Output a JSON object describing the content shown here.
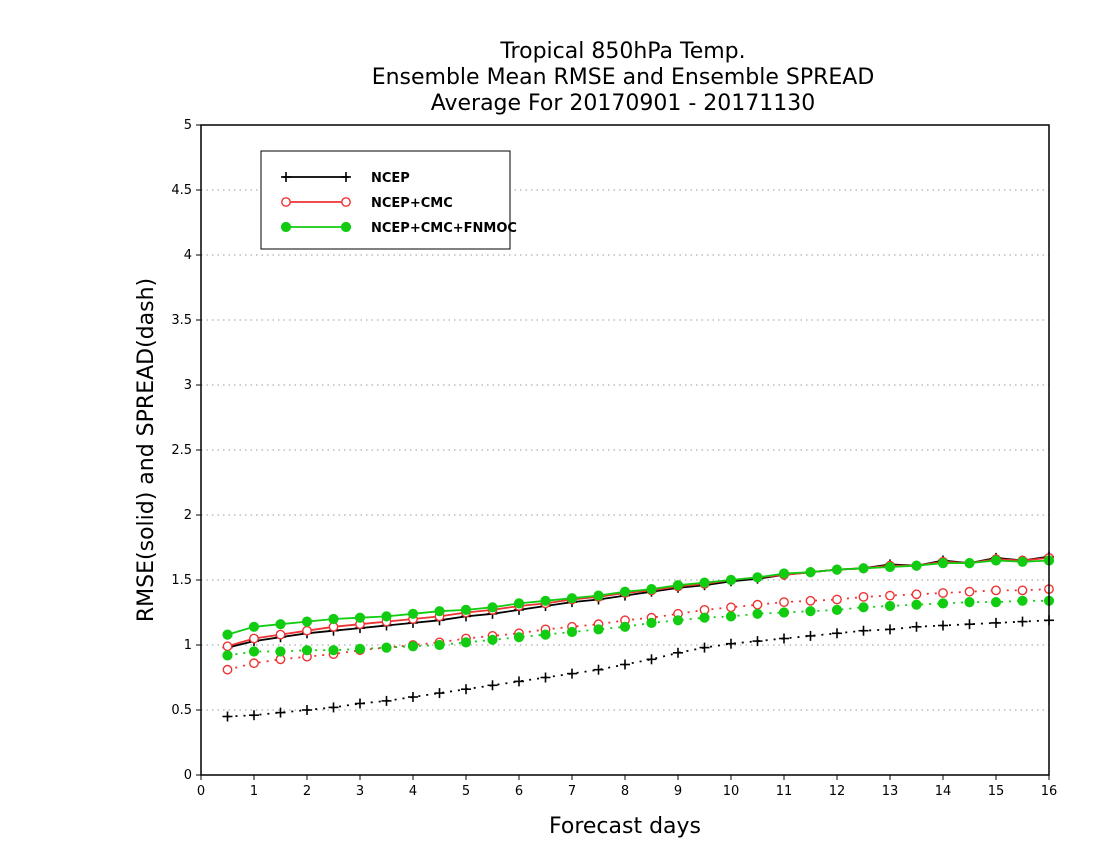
{
  "chart_data": {
    "type": "line",
    "title_lines": [
      "Tropical 850hPa Temp.",
      "Ensemble Mean RMSE and Ensemble SPREAD",
      "Average For 20170901 - 20171130"
    ],
    "xlabel": "Forecast days",
    "ylabel": "RMSE(solid) and SPREAD(dash)",
    "xlim": [
      0,
      16
    ],
    "ylim": [
      0,
      5
    ],
    "x_ticks": [
      "0",
      "1",
      "2",
      "3",
      "4",
      "5",
      "6",
      "7",
      "8",
      "9",
      "10",
      "11",
      "12",
      "13",
      "14",
      "15",
      "16"
    ],
    "y_ticks": [
      "0",
      "0.5",
      "1",
      "1.5",
      "2",
      "2.5",
      "3",
      "3.5",
      "4",
      "4.5",
      "5"
    ],
    "grid": "horizontal dotted",
    "legend_position": "top-left",
    "x": [
      0.5,
      1,
      1.5,
      2,
      2.5,
      3,
      3.5,
      4,
      4.5,
      5,
      5.5,
      6,
      6.5,
      7,
      7.5,
      8,
      8.5,
      9,
      9.5,
      10,
      10.5,
      11,
      11.5,
      12,
      12.5,
      13,
      13.5,
      14,
      14.5,
      15,
      15.5,
      16
    ],
    "series": [
      {
        "name": "NCEP",
        "color": "#000000",
        "marker": "plus",
        "rmse": [
          0.98,
          1.03,
          1.06,
          1.09,
          1.11,
          1.13,
          1.15,
          1.17,
          1.19,
          1.22,
          1.24,
          1.27,
          1.3,
          1.33,
          1.35,
          1.38,
          1.41,
          1.44,
          1.46,
          1.49,
          1.51,
          1.54,
          1.56,
          1.58,
          1.59,
          1.62,
          1.61,
          1.65,
          1.63,
          1.67,
          1.65,
          1.68
        ],
        "spread": [
          0.45,
          0.46,
          0.48,
          0.5,
          0.52,
          0.55,
          0.57,
          0.6,
          0.63,
          0.66,
          0.69,
          0.72,
          0.75,
          0.78,
          0.81,
          0.85,
          0.89,
          0.94,
          0.98,
          1.01,
          1.03,
          1.05,
          1.07,
          1.09,
          1.11,
          1.12,
          1.14,
          1.15,
          1.16,
          1.17,
          1.18,
          1.19
        ]
      },
      {
        "name": "NCEP+CMC",
        "color": "#ee3333",
        "marker": "open-circle",
        "rmse": [
          0.99,
          1.05,
          1.08,
          1.11,
          1.14,
          1.16,
          1.18,
          1.2,
          1.22,
          1.25,
          1.27,
          1.3,
          1.32,
          1.35,
          1.37,
          1.4,
          1.42,
          1.45,
          1.47,
          1.5,
          1.52,
          1.54,
          1.56,
          1.58,
          1.59,
          1.61,
          1.61,
          1.64,
          1.63,
          1.66,
          1.65,
          1.67
        ],
        "spread": [
          0.81,
          0.86,
          0.89,
          0.91,
          0.93,
          0.96,
          0.98,
          1.0,
          1.02,
          1.05,
          1.07,
          1.09,
          1.12,
          1.14,
          1.16,
          1.19,
          1.21,
          1.24,
          1.27,
          1.29,
          1.31,
          1.33,
          1.34,
          1.35,
          1.37,
          1.38,
          1.39,
          1.4,
          1.41,
          1.42,
          1.42,
          1.43
        ]
      },
      {
        "name": "NCEP+CMC+FNMOC",
        "color": "#11cc11",
        "marker": "filled-circle",
        "rmse": [
          1.08,
          1.14,
          1.16,
          1.18,
          1.2,
          1.21,
          1.22,
          1.24,
          1.26,
          1.27,
          1.29,
          1.32,
          1.34,
          1.36,
          1.38,
          1.41,
          1.43,
          1.46,
          1.48,
          1.5,
          1.52,
          1.55,
          1.56,
          1.58,
          1.59,
          1.6,
          1.61,
          1.63,
          1.63,
          1.65,
          1.64,
          1.65
        ],
        "spread": [
          0.92,
          0.95,
          0.95,
          0.96,
          0.96,
          0.97,
          0.98,
          0.99,
          1.0,
          1.02,
          1.04,
          1.06,
          1.08,
          1.1,
          1.12,
          1.14,
          1.17,
          1.19,
          1.21,
          1.22,
          1.24,
          1.25,
          1.26,
          1.27,
          1.29,
          1.3,
          1.31,
          1.32,
          1.33,
          1.33,
          1.34,
          1.34
        ]
      }
    ]
  }
}
